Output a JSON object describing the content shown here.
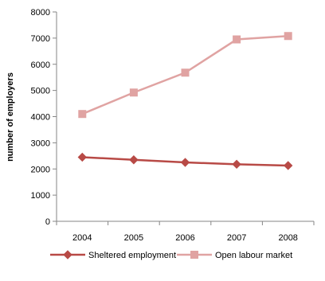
{
  "chart_data": {
    "type": "line",
    "x": [
      "2004",
      "2005",
      "2006",
      "2007",
      "2008"
    ],
    "ylabel": "number of employers",
    "xlabel": "",
    "ylim": [
      0,
      8000
    ],
    "yticks": [
      "0",
      "1000",
      "2000",
      "3000",
      "4000",
      "5000",
      "6000",
      "7000",
      "8000"
    ],
    "grid": false,
    "legend_position": "bottom",
    "series": [
      {
        "name": "Sheltered employment",
        "values": [
          2450,
          2350,
          2250,
          2180,
          2130
        ],
        "color": "#b84a46",
        "marker": "diamond"
      },
      {
        "name": "Open labour market",
        "values": [
          4100,
          4920,
          5680,
          6950,
          7080
        ],
        "color": "#e0a3a2",
        "marker": "square"
      }
    ]
  }
}
